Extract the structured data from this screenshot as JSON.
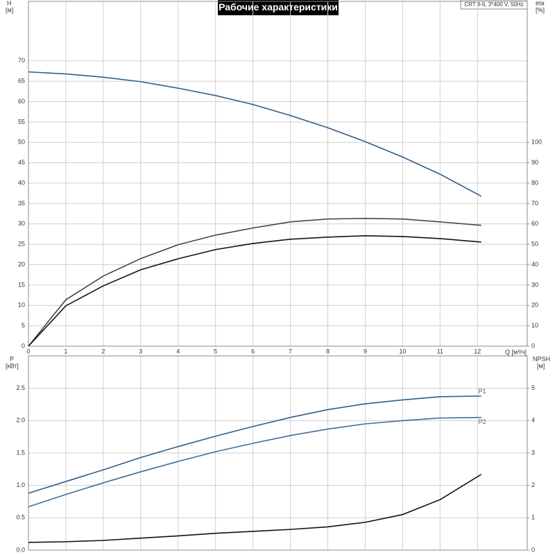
{
  "chart_data": [
    {
      "type": "line",
      "title": "Рабочие характеристики",
      "annotation": "CRT 8-6, 3*400 V, 50Hz",
      "ylabel": "H",
      "yunit": "[м]",
      "y2label": "eta",
      "y2unit": "[%]",
      "xlabel": "Q [м³/ч]",
      "x": [
        0,
        1,
        2,
        3,
        4,
        5,
        6,
        7,
        8,
        9,
        10,
        11,
        12.1
      ],
      "xlim": [
        0,
        13.33
      ],
      "xticks": [
        0,
        1,
        2,
        3,
        4,
        5,
        6,
        7,
        8,
        9,
        10,
        11,
        12
      ],
      "ylim": [
        0,
        84.6
      ],
      "yticks": [
        0,
        5,
        10,
        15,
        20,
        25,
        30,
        35,
        40,
        45,
        50,
        55,
        60,
        65,
        70
      ],
      "y2lim": [
        0,
        169.2
      ],
      "y2ticks": [
        0,
        10,
        20,
        30,
        40,
        50,
        60,
        70,
        80,
        90,
        100
      ],
      "grid": true,
      "series": [
        {
          "color": "#2f5d8a",
          "values": [
            67.3,
            66.8,
            66.0,
            64.9,
            63.3,
            61.5,
            59.3,
            56.6,
            53.6,
            50.2,
            46.4,
            42.2,
            36.8
          ]
        },
        {
          "color": "#444444",
          "axis": "y2",
          "values": [
            0,
            22.8,
            34.4,
            43,
            49.8,
            54.5,
            58,
            61,
            62.4,
            62.7,
            62.4,
            61,
            59.3
          ]
        },
        {
          "color": "#111111",
          "axis": "y2",
          "values": [
            0,
            19.8,
            29.6,
            37.5,
            42.9,
            47.4,
            50.4,
            52.5,
            53.5,
            54.2,
            53.8,
            52.8,
            51.1
          ]
        }
      ]
    },
    {
      "type": "line",
      "ylabel": "P",
      "yunit": "[кВт]",
      "y2label": "NPSH",
      "y2unit": "[м]",
      "x": [
        0,
        1,
        2,
        3,
        4,
        5,
        6,
        7,
        8,
        9,
        10,
        11,
        12.1
      ],
      "xlim": [
        0,
        13.33
      ],
      "ylim": [
        0,
        3.0
      ],
      "yticks": [
        {
          "value": 0,
          "label": "0.0"
        },
        0.5,
        {
          "value": 1,
          "label": "1.0"
        },
        1.5,
        {
          "value": 2,
          "label": "2.0"
        },
        2.5
      ],
      "y2lim": [
        0,
        6.0
      ],
      "y2ticks": [
        0,
        1,
        2,
        3,
        4,
        5
      ],
      "grid": true,
      "series": [
        {
          "name": "P1",
          "color": "#2f5d8a",
          "values": [
            0.88,
            1.06,
            1.24,
            1.43,
            1.6,
            1.76,
            1.91,
            2.05,
            2.17,
            2.26,
            2.32,
            2.37,
            2.38
          ]
        },
        {
          "name": "P2",
          "color": "#3f6e9a",
          "values": [
            0.67,
            0.86,
            1.04,
            1.21,
            1.37,
            1.52,
            1.65,
            1.77,
            1.87,
            1.95,
            2.0,
            2.04,
            2.05
          ]
        },
        {
          "color": "#111111",
          "axis": "y2",
          "values": [
            0.24,
            0.26,
            0.3,
            0.37,
            0.44,
            0.52,
            0.58,
            0.64,
            0.72,
            0.86,
            1.1,
            1.56,
            2.34
          ]
        }
      ]
    }
  ]
}
